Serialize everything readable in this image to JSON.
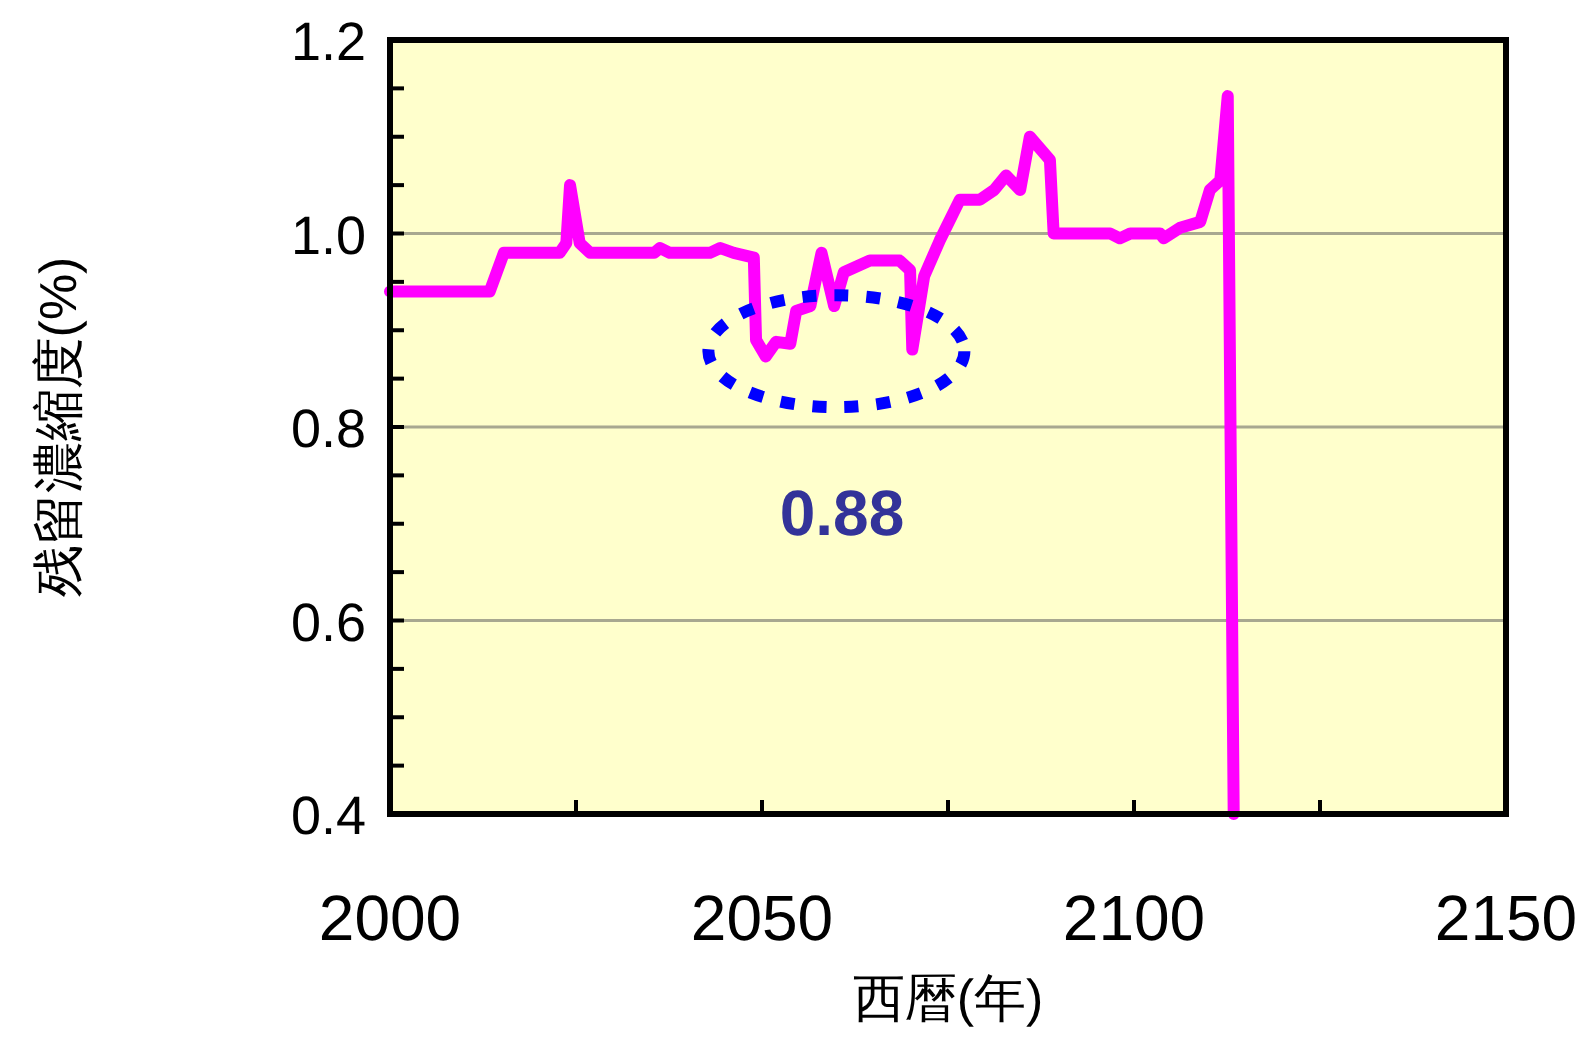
{
  "chart_data": {
    "type": "line",
    "xlabel": "西暦(年)",
    "ylabel": "残留濃縮度(%)",
    "annotations": [
      "0.88"
    ],
    "xlim": [
      2000,
      2150
    ],
    "xticks": [
      2000,
      {
        "value": 2025,
        "label": null
      },
      2050,
      {
        "value": 2075,
        "label": null
      },
      2100,
      {
        "value": 2125,
        "label": null
      },
      2150
    ],
    "ylim": [
      0.4,
      1.2
    ],
    "yticks": [
      0.4,
      {
        "value": 0.45,
        "label": null
      },
      0.6,
      {
        "value": 0.5,
        "label": null
      },
      {
        "value": 0.55,
        "label": null
      },
      {
        "value": 0.65,
        "label": null
      },
      {
        "value": 0.7,
        "label": null
      },
      {
        "value": 0.75,
        "label": null
      },
      0.8,
      {
        "value": 0.85,
        "label": null
      },
      {
        "value": 0.9,
        "label": null
      },
      {
        "value": 0.95,
        "label": null
      },
      {
        "value": 1.0,
        "label": "1.0"
      },
      {
        "value": 1.05,
        "label": null
      },
      {
        "value": 1.1,
        "label": null
      },
      {
        "value": 1.15,
        "label": null
      },
      1.2
    ],
    "grid": "y",
    "marker": "none",
    "line_style": "solid",
    "series": [
      {
        "color": "#ff00ff",
        "x": [
          2000,
          2013.4,
          2015.3,
          2022.8,
          2023.7,
          2024.2,
          2025.5,
          2026.9,
          2035.5,
          2036.3,
          2037.6,
          2043,
          2044.4,
          2046.2,
          2048.9,
          2049.2,
          2050.5,
          2051.9,
          2053.8,
          2054.6,
          2056.5,
          2058,
          2059.7,
          2061,
          2064.5,
          2068.5,
          2069.9,
          2070.2,
          2071.8,
          2073.9,
          2076.6,
          2079.3,
          2081.2,
          2082.8,
          2084.7,
          2086,
          2088.7,
          2089.2,
          2090.9,
          2096.8,
          2098.1,
          2099.5,
          2103.5,
          2104,
          2106.2,
          2108.9,
          2110.2,
          2111.6,
          2112.6,
          2113.4
        ],
        "values": [
          0.94,
          0.94,
          0.98,
          0.98,
          0.99,
          1.05,
          0.99,
          0.98,
          0.98,
          0.985,
          0.98,
          0.98,
          0.985,
          0.98,
          0.975,
          0.89,
          0.873,
          0.888,
          0.886,
          0.92,
          0.925,
          0.98,
          0.925,
          0.96,
          0.972,
          0.972,
          0.962,
          0.88,
          0.956,
          0.993,
          1.035,
          1.035,
          1.045,
          1.06,
          1.045,
          1.1,
          1.076,
          1.0,
          1.0,
          1.0,
          0.995,
          1.0,
          1.0,
          0.995,
          1.006,
          1.012,
          1.045,
          1.055,
          1.142,
          0.4
        ]
      }
    ]
  }
}
